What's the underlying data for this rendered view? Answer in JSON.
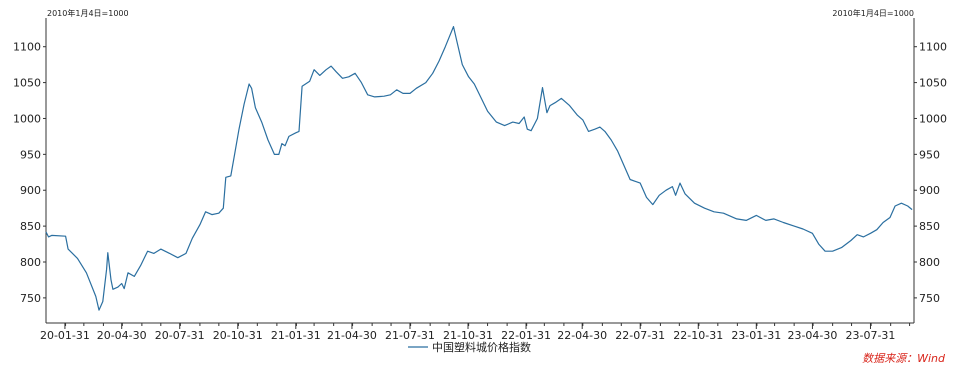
{
  "chart_data": {
    "type": "line",
    "title": "",
    "xlabel": "",
    "ylabel": "",
    "base_note_left": "2010年1月4日=1000",
    "base_note_right": "2010年1月4日=1000",
    "ylim": [
      715,
      1140
    ],
    "yticks": [
      750,
      800,
      850,
      900,
      950,
      1000,
      1050,
      1100
    ],
    "xticks": [
      "20-01-31",
      "20-04-30",
      "20-07-31",
      "20-10-31",
      "21-01-31",
      "21-04-30",
      "21-07-31",
      "21-10-31",
      "22-01-31",
      "22-04-30",
      "22-07-31",
      "22-10-31",
      "23-01-31",
      "23-04-30",
      "23-07-31"
    ],
    "x_start": "2020-01-01",
    "x_end": "2023-10-08",
    "grid": false,
    "legend_position": "bottom-center",
    "color": "#2b6fa0",
    "series": [
      {
        "name": "中国塑料城价格指数",
        "points": [
          [
            "2020-01-01",
            842
          ],
          [
            "2020-01-05",
            835
          ],
          [
            "2020-01-10",
            837
          ],
          [
            "2020-02-01",
            836
          ],
          [
            "2020-02-05",
            818
          ],
          [
            "2020-02-20",
            805
          ],
          [
            "2020-03-05",
            785
          ],
          [
            "2020-03-20",
            752
          ],
          [
            "2020-03-25",
            733
          ],
          [
            "2020-03-31",
            745
          ],
          [
            "2020-04-06",
            790
          ],
          [
            "2020-04-08",
            813
          ],
          [
            "2020-04-13",
            775
          ],
          [
            "2020-04-16",
            762
          ],
          [
            "2020-04-24",
            765
          ],
          [
            "2020-04-30",
            770
          ],
          [
            "2020-05-04",
            763
          ],
          [
            "2020-05-10",
            785
          ],
          [
            "2020-05-20",
            780
          ],
          [
            "2020-05-30",
            795
          ],
          [
            "2020-06-10",
            815
          ],
          [
            "2020-06-20",
            812
          ],
          [
            "2020-07-01",
            818
          ],
          [
            "2020-07-15",
            812
          ],
          [
            "2020-07-28",
            806
          ],
          [
            "2020-08-10",
            812
          ],
          [
            "2020-08-20",
            833
          ],
          [
            "2020-09-01",
            852
          ],
          [
            "2020-09-10",
            870
          ],
          [
            "2020-09-20",
            866
          ],
          [
            "2020-10-01",
            868
          ],
          [
            "2020-10-08",
            875
          ],
          [
            "2020-10-12",
            918
          ],
          [
            "2020-10-20",
            920
          ],
          [
            "2020-10-26",
            950
          ],
          [
            "2020-11-02",
            985
          ],
          [
            "2020-11-10",
            1020
          ],
          [
            "2020-11-18",
            1048
          ],
          [
            "2020-11-22",
            1042
          ],
          [
            "2020-11-28",
            1015
          ],
          [
            "2020-12-08",
            995
          ],
          [
            "2020-12-18",
            970
          ],
          [
            "2020-12-28",
            950
          ],
          [
            "2021-01-04",
            950
          ],
          [
            "2021-01-09",
            965
          ],
          [
            "2021-01-14",
            962
          ],
          [
            "2021-01-20",
            975
          ],
          [
            "2021-01-31",
            980
          ],
          [
            "2021-02-05",
            982
          ],
          [
            "2021-02-10",
            1045
          ],
          [
            "2021-02-22",
            1052
          ],
          [
            "2021-03-01",
            1068
          ],
          [
            "2021-03-10",
            1060
          ],
          [
            "2021-03-20",
            1068
          ],
          [
            "2021-03-28",
            1073
          ],
          [
            "2021-04-05",
            1065
          ],
          [
            "2021-04-15",
            1056
          ],
          [
            "2021-04-25",
            1058
          ],
          [
            "2021-05-05",
            1063
          ],
          [
            "2021-05-15",
            1050
          ],
          [
            "2021-05-25",
            1033
          ],
          [
            "2021-06-05",
            1030
          ],
          [
            "2021-06-20",
            1031
          ],
          [
            "2021-06-30",
            1033
          ],
          [
            "2021-07-10",
            1040
          ],
          [
            "2021-07-20",
            1035
          ],
          [
            "2021-07-31",
            1035
          ],
          [
            "2021-08-10",
            1042
          ],
          [
            "2021-08-25",
            1050
          ],
          [
            "2021-09-05",
            1063
          ],
          [
            "2021-09-15",
            1080
          ],
          [
            "2021-09-25",
            1100
          ],
          [
            "2021-10-08",
            1128
          ],
          [
            "2021-10-14",
            1105
          ],
          [
            "2021-10-22",
            1075
          ],
          [
            "2021-11-01",
            1058
          ],
          [
            "2021-11-10",
            1048
          ],
          [
            "2021-11-20",
            1030
          ],
          [
            "2021-12-01",
            1010
          ],
          [
            "2021-12-15",
            995
          ],
          [
            "2021-12-28",
            990
          ],
          [
            "2022-01-10",
            995
          ],
          [
            "2022-01-20",
            993
          ],
          [
            "2022-01-28",
            1002
          ],
          [
            "2022-02-02",
            985
          ],
          [
            "2022-02-08",
            983
          ],
          [
            "2022-02-18",
            1000
          ],
          [
            "2022-02-26",
            1043
          ],
          [
            "2022-03-05",
            1008
          ],
          [
            "2022-03-10",
            1018
          ],
          [
            "2022-03-18",
            1022
          ],
          [
            "2022-03-28",
            1028
          ],
          [
            "2022-04-10",
            1018
          ],
          [
            "2022-04-22",
            1005
          ],
          [
            "2022-05-01",
            998
          ],
          [
            "2022-05-10",
            982
          ],
          [
            "2022-05-20",
            985
          ],
          [
            "2022-05-28",
            988
          ],
          [
            "2022-06-05",
            982
          ],
          [
            "2022-06-15",
            970
          ],
          [
            "2022-06-25",
            955
          ],
          [
            "2022-07-05",
            935
          ],
          [
            "2022-07-15",
            915
          ],
          [
            "2022-07-31",
            910
          ],
          [
            "2022-08-10",
            890
          ],
          [
            "2022-08-20",
            880
          ],
          [
            "2022-08-30",
            893
          ],
          [
            "2022-09-10",
            900
          ],
          [
            "2022-09-20",
            905
          ],
          [
            "2022-09-25",
            893
          ],
          [
            "2022-10-02",
            910
          ],
          [
            "2022-10-10",
            895
          ],
          [
            "2022-10-25",
            882
          ],
          [
            "2022-11-10",
            875
          ],
          [
            "2022-11-25",
            870
          ],
          [
            "2022-12-10",
            868
          ],
          [
            "2022-12-31",
            860
          ],
          [
            "2023-01-15",
            858
          ],
          [
            "2023-01-31",
            865
          ],
          [
            "2023-02-15",
            858
          ],
          [
            "2023-02-28",
            860
          ],
          [
            "2023-03-15",
            855
          ],
          [
            "2023-04-01",
            850
          ],
          [
            "2023-04-15",
            846
          ],
          [
            "2023-04-30",
            840
          ],
          [
            "2023-05-10",
            825
          ],
          [
            "2023-05-20",
            815
          ],
          [
            "2023-06-01",
            815
          ],
          [
            "2023-06-15",
            820
          ],
          [
            "2023-06-30",
            830
          ],
          [
            "2023-07-10",
            838
          ],
          [
            "2023-07-20",
            835
          ],
          [
            "2023-07-31",
            840
          ],
          [
            "2023-08-10",
            845
          ],
          [
            "2023-08-20",
            855
          ],
          [
            "2023-08-31",
            862
          ],
          [
            "2023-09-08",
            878
          ],
          [
            "2023-09-18",
            882
          ],
          [
            "2023-09-28",
            878
          ],
          [
            "2023-10-05",
            873
          ]
        ]
      }
    ]
  },
  "legend": {
    "label": "中国塑料城价格指数"
  },
  "source": {
    "text": "数据来源：Wind"
  }
}
